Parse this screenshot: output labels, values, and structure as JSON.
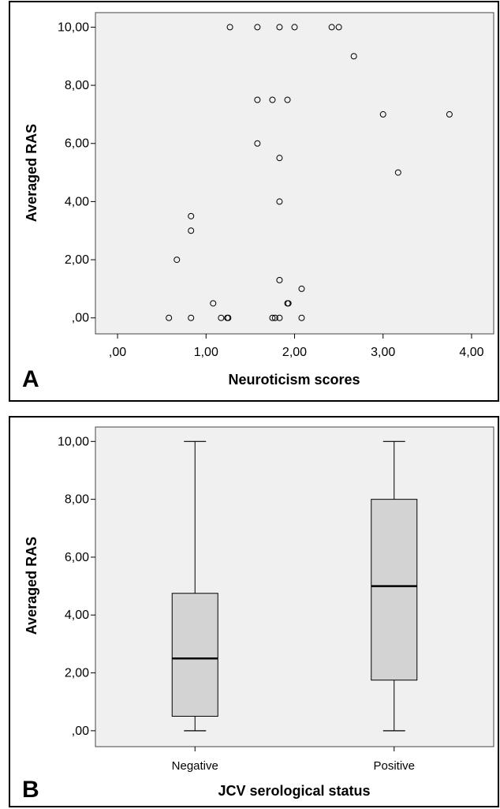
{
  "chart_data": [
    {
      "type": "scatter",
      "panel_label": "A",
      "xlabel": "Neuroticism scores",
      "ylabel": "Averaged RAS",
      "xlim": [
        -0.25,
        4.25
      ],
      "ylim": [
        -0.55,
        10.5
      ],
      "x_ticks": [
        0,
        1,
        2,
        3,
        4
      ],
      "x_tick_labels": [
        ",00",
        "1,00",
        "2,00",
        "3,00",
        "4,00"
      ],
      "y_ticks": [
        0,
        2,
        4,
        6,
        8,
        10
      ],
      "y_tick_labels": [
        ",00",
        "2,00",
        "4,00",
        "6,00",
        "8,00",
        "10,00"
      ],
      "background": "#f0f0f0",
      "marker_color": "#000000",
      "points": [
        {
          "x": 1.27,
          "y": 10.0
        },
        {
          "x": 1.58,
          "y": 10.0
        },
        {
          "x": 1.83,
          "y": 10.0
        },
        {
          "x": 2.0,
          "y": 10.0
        },
        {
          "x": 2.42,
          "y": 10.0
        },
        {
          "x": 2.5,
          "y": 10.0
        },
        {
          "x": 2.67,
          "y": 9.0
        },
        {
          "x": 1.58,
          "y": 7.5
        },
        {
          "x": 1.75,
          "y": 7.5
        },
        {
          "x": 1.92,
          "y": 7.5
        },
        {
          "x": 3.0,
          "y": 7.0
        },
        {
          "x": 3.75,
          "y": 7.0
        },
        {
          "x": 1.58,
          "y": 6.0
        },
        {
          "x": 1.83,
          "y": 5.5
        },
        {
          "x": 3.17,
          "y": 5.0
        },
        {
          "x": 1.83,
          "y": 4.0
        },
        {
          "x": 0.83,
          "y": 3.5
        },
        {
          "x": 0.83,
          "y": 3.0
        },
        {
          "x": 0.67,
          "y": 2.0
        },
        {
          "x": 1.83,
          "y": 1.3
        },
        {
          "x": 2.08,
          "y": 1.0
        },
        {
          "x": 1.08,
          "y": 0.5
        },
        {
          "x": 1.92,
          "y": 0.5
        },
        {
          "x": 1.93,
          "y": 0.5
        },
        {
          "x": 0.58,
          "y": 0.0
        },
        {
          "x": 0.83,
          "y": 0.0
        },
        {
          "x": 1.17,
          "y": 0.0
        },
        {
          "x": 1.24,
          "y": 0.0
        },
        {
          "x": 1.25,
          "y": 0.0
        },
        {
          "x": 1.75,
          "y": 0.0
        },
        {
          "x": 1.78,
          "y": 0.0
        },
        {
          "x": 1.83,
          "y": 0.0
        },
        {
          "x": 2.08,
          "y": 0.0
        }
      ]
    },
    {
      "type": "box",
      "panel_label": "B",
      "xlabel": "JCV serological status",
      "ylabel": "Averaged RAS",
      "ylim": [
        -0.55,
        10.5
      ],
      "y_ticks": [
        0,
        2,
        4,
        6,
        8,
        10
      ],
      "y_tick_labels": [
        ",00",
        "2,00",
        "4,00",
        "6,00",
        "8,00",
        "10,00"
      ],
      "background": "#f0f0f0",
      "box_color": "#d3d3d3",
      "categories": [
        "Negative",
        "Positive"
      ],
      "boxes": [
        {
          "category": "Negative",
          "min": 0.0,
          "q1": 0.5,
          "median": 2.5,
          "q3": 4.75,
          "max": 10.0
        },
        {
          "category": "Positive",
          "min": 0.0,
          "q1": 1.75,
          "median": 5.0,
          "q3": 8.0,
          "max": 10.0
        }
      ]
    }
  ]
}
